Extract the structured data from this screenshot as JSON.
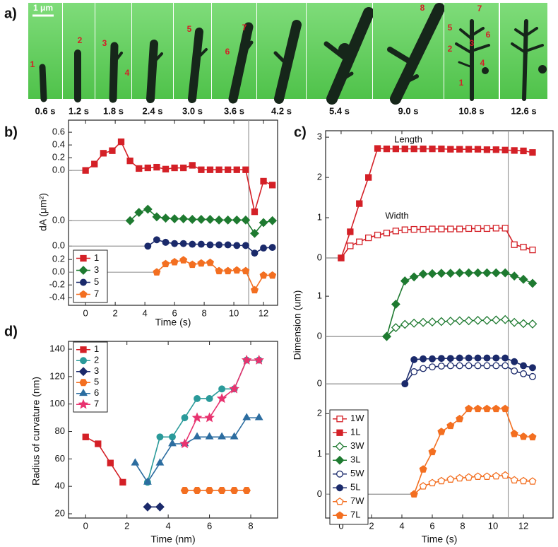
{
  "image_strip": {
    "label": "a)",
    "scale_bar": "1 μm",
    "frames": [
      {
        "time": "0.6 s",
        "markers": [
          "1"
        ]
      },
      {
        "time": "1.2 s",
        "markers": [
          "2"
        ]
      },
      {
        "time": "1.8 s",
        "markers": [
          "3",
          "4"
        ]
      },
      {
        "time": "2.4 s",
        "markers": []
      },
      {
        "time": "3.0 s",
        "markers": [
          "5"
        ]
      },
      {
        "time": "3.6 s",
        "markers": [
          "6",
          "7"
        ]
      },
      {
        "time": "4.2 s",
        "markers": []
      },
      {
        "time": "5.4 s",
        "markers": []
      },
      {
        "time": "9.0 s",
        "markers": [
          "8"
        ]
      },
      {
        "time": "10.8 s",
        "markers": [
          "7",
          "5",
          "6",
          "2",
          "3",
          "4",
          "1"
        ]
      },
      {
        "time": "12.6 s",
        "markers": []
      }
    ]
  },
  "chart_data": [
    {
      "type": "line",
      "label": "b)",
      "xlabel": "Time (s)",
      "ylabel": "dA (μm²)",
      "xlim": [
        -1.15,
        12.95
      ],
      "xticks": [
        0,
        2,
        4,
        6,
        8,
        10,
        12
      ],
      "vline": 11,
      "legend": "lower left",
      "series": [
        {
          "name": "1",
          "color": "#d42027",
          "marker": "square",
          "filled": true,
          "ylim": [
            -2.12,
            0.79
          ],
          "yticks": [
            {
              "value": 0,
              "label": "0.0"
            },
            0.2,
            0.4,
            0.6
          ],
          "x": [
            0,
            0.6,
            1.2,
            1.8,
            2.4,
            3.0,
            3.6,
            4.2,
            4.8,
            5.4,
            6.0,
            6.6,
            7.2,
            7.8,
            8.4,
            9.0,
            9.6,
            10.2,
            10.8,
            11.4,
            12.0,
            12.6
          ],
          "values": [
            0,
            0.1,
            0.27,
            0.31,
            0.45,
            0.15,
            0.03,
            0.04,
            0.05,
            0.02,
            0.04,
            0.04,
            0.08,
            0.01,
            0.01,
            0.01,
            0.01,
            0.01,
            0.01,
            -0.65,
            -0.17,
            -0.23
          ]
        },
        {
          "name": "3",
          "color": "#1e7a30",
          "marker": "diamond",
          "filled": true,
          "ylim": [
            -1.33,
            1.58
          ],
          "yticks": [
            {
              "value": 0,
              "label": "0.0"
            }
          ],
          "x": [
            3.0,
            3.6,
            4.2,
            4.8,
            5.4,
            6.0,
            6.6,
            7.2,
            7.8,
            8.4,
            9.0,
            9.6,
            10.2,
            10.8,
            11.4,
            12.0,
            12.6
          ],
          "values": [
            0,
            0.13,
            0.18,
            0.06,
            0.04,
            0.03,
            0.03,
            0.02,
            0.02,
            0.02,
            0.01,
            0.01,
            0.01,
            0.01,
            -0.2,
            -0.03,
            0
          ]
        },
        {
          "name": "5",
          "color": "#1b2a6b",
          "marker": "circle",
          "filled": true,
          "ylim": [
            -0.93,
            1.98
          ],
          "yticks": [
            {
              "value": 0,
              "label": "0.0"
            }
          ],
          "x": [
            4.2,
            4.8,
            5.4,
            6.0,
            6.6,
            7.2,
            7.8,
            8.4,
            9.0,
            9.6,
            10.2,
            10.8,
            11.4,
            12.0,
            12.6
          ],
          "values": [
            0,
            0.1,
            0.06,
            0.04,
            0.04,
            0.03,
            0.03,
            0.02,
            0.02,
            0.02,
            0.01,
            0.01,
            -0.11,
            -0.03,
            -0.02
          ]
        },
        {
          "name": "7",
          "color": "#f36f21",
          "marker": "pentagon",
          "filled": true,
          "ylim": [
            -0.52,
            2.39
          ],
          "yticks": [
            -0.4,
            -0.2,
            {
              "value": 0,
              "label": "0.0"
            },
            0.2
          ],
          "x": [
            4.8,
            5.4,
            6.0,
            6.6,
            7.2,
            7.8,
            8.4,
            9.0,
            9.6,
            10.2,
            10.8,
            11.4,
            12.0,
            12.6
          ],
          "values": [
            0,
            0.13,
            0.16,
            0.19,
            0.12,
            0.14,
            0.15,
            0.02,
            0.02,
            0.03,
            0.02,
            -0.28,
            -0.05,
            -0.05
          ]
        }
      ]
    },
    {
      "type": "line",
      "label": "c)",
      "xlabel": "Time (s)",
      "ylabel": "Dimension (um)",
      "annotations": [
        "Length",
        "Width"
      ],
      "xlim": [
        -1.02,
        13.95
      ],
      "xticks": [
        0,
        2,
        4,
        6,
        8,
        10,
        12
      ],
      "vline": 11,
      "legend": "lower left",
      "series": [
        {
          "name": "1W",
          "color": "#d42027",
          "marker": "square",
          "filled": false,
          "ylim": [
            -6.46,
            3.16
          ],
          "x": [
            0,
            0.6,
            1.2,
            1.8,
            2.4,
            3.0,
            3.6,
            4.2,
            4.8,
            5.4,
            6.0,
            6.6,
            7.2,
            7.8,
            8.4,
            9.0,
            9.6,
            10.2,
            10.8,
            11.4,
            12.0,
            12.6
          ],
          "values": [
            0,
            0.3,
            0.4,
            0.5,
            0.57,
            0.62,
            0.67,
            0.7,
            0.71,
            0.71,
            0.72,
            0.72,
            0.72,
            0.72,
            0.73,
            0.73,
            0.73,
            0.74,
            0.74,
            0.33,
            0.27,
            0.2
          ]
        },
        {
          "name": "1L",
          "color": "#d42027",
          "marker": "square",
          "filled": true,
          "ylim": [
            -6.46,
            3.16
          ],
          "yticks": [
            0,
            1,
            2,
            3
          ],
          "x": [
            0,
            0.6,
            1.2,
            1.8,
            2.4,
            3.0,
            3.6,
            4.2,
            4.8,
            5.4,
            6.0,
            6.6,
            7.2,
            7.8,
            8.4,
            9.0,
            9.6,
            10.2,
            10.8,
            11.4,
            12.0,
            12.6
          ],
          "values": [
            0,
            0.65,
            1.35,
            2.0,
            2.72,
            2.71,
            2.71,
            2.71,
            2.71,
            2.71,
            2.71,
            2.71,
            2.7,
            2.7,
            2.7,
            2.7,
            2.69,
            2.69,
            2.68,
            2.67,
            2.66,
            2.62
          ]
        },
        {
          "name": "3W",
          "color": "#1e7a30",
          "marker": "diamond",
          "filled": false,
          "ylim": [
            -4.51,
            5.11
          ],
          "x": [
            3.0,
            3.6,
            4.2,
            4.8,
            5.4,
            6.0,
            6.6,
            7.2,
            7.8,
            8.4,
            9.0,
            9.6,
            10.2,
            10.8,
            11.4,
            12.0,
            12.6
          ],
          "values": [
            0,
            0.22,
            0.3,
            0.33,
            0.35,
            0.36,
            0.37,
            0.38,
            0.39,
            0.39,
            0.4,
            0.4,
            0.41,
            0.42,
            0.35,
            0.32,
            0.31
          ]
        },
        {
          "name": "3L",
          "color": "#1e7a30",
          "marker": "diamond",
          "filled": true,
          "ylim": [
            -4.51,
            5.11
          ],
          "yticks": [
            0,
            1
          ],
          "x": [
            3.0,
            3.6,
            4.2,
            4.8,
            5.4,
            6.0,
            6.6,
            7.2,
            7.8,
            8.4,
            9.0,
            9.6,
            10.2,
            10.8,
            11.4,
            12.0,
            12.6
          ],
          "values": [
            0,
            0.8,
            1.38,
            1.48,
            1.55,
            1.56,
            1.57,
            1.57,
            1.58,
            1.58,
            1.58,
            1.58,
            1.58,
            1.58,
            1.5,
            1.42,
            1.32
          ]
        },
        {
          "name": "5W",
          "color": "#1b2a6b",
          "marker": "circle",
          "filled": false,
          "ylim": [
            -3.33,
            6.28
          ],
          "x": [
            4.2,
            4.8,
            5.4,
            6.0,
            6.6,
            7.2,
            7.8,
            8.4,
            9.0,
            9.6,
            10.2,
            10.8,
            11.4,
            12.0,
            12.6
          ],
          "values": [
            0,
            0.3,
            0.38,
            0.42,
            0.44,
            0.45,
            0.45,
            0.45,
            0.45,
            0.45,
            0.45,
            0.45,
            0.32,
            0.25,
            0.18
          ]
        },
        {
          "name": "5L",
          "color": "#1b2a6b",
          "marker": "circle",
          "filled": true,
          "ylim": [
            -3.33,
            6.28
          ],
          "yticks": [
            0
          ],
          "x": [
            4.2,
            4.8,
            5.4,
            6.0,
            6.6,
            7.2,
            7.8,
            8.4,
            9.0,
            9.6,
            10.2,
            10.8,
            11.4,
            12.0,
            12.6
          ],
          "values": [
            0,
            0.6,
            0.62,
            0.62,
            0.63,
            0.63,
            0.64,
            0.64,
            0.64,
            0.64,
            0.64,
            0.64,
            0.55,
            0.45,
            0.4
          ]
        },
        {
          "name": "7W",
          "color": "#f36f21",
          "marker": "pentagon",
          "filled": false,
          "ylim": [
            -0.59,
            9.02
          ],
          "x": [
            4.8,
            5.4,
            6.0,
            6.6,
            7.2,
            7.8,
            8.4,
            9.0,
            9.6,
            10.2,
            10.8,
            11.4,
            12.0,
            12.6
          ],
          "values": [
            0,
            0.2,
            0.28,
            0.33,
            0.37,
            0.4,
            0.42,
            0.44,
            0.44,
            0.45,
            0.47,
            0.35,
            0.33,
            0.32
          ]
        },
        {
          "name": "7L",
          "color": "#f36f21",
          "marker": "pentagon",
          "filled": true,
          "ylim": [
            -0.59,
            9.02
          ],
          "yticks": [
            0,
            1,
            2
          ],
          "x": [
            4.8,
            5.4,
            6.0,
            6.6,
            7.2,
            7.8,
            8.4,
            9.0,
            9.6,
            10.2,
            10.8,
            11.4,
            12.0,
            12.6
          ],
          "values": [
            0,
            0.62,
            1.05,
            1.55,
            1.7,
            1.87,
            2.12,
            2.12,
            2.12,
            2.12,
            2.12,
            1.5,
            1.43,
            1.42
          ]
        }
      ]
    },
    {
      "type": "line",
      "label": "d)",
      "xlabel": "Time (nm)",
      "ylabel": "Radius of curvature (nm)",
      "xlim": [
        -0.83,
        9.3
      ],
      "xticks": [
        0,
        2,
        4,
        6,
        8
      ],
      "ylim": [
        16.9,
        145.7
      ],
      "yticks": [
        20,
        40,
        60,
        80,
        100,
        120,
        140
      ],
      "legend": "upper left",
      "series": [
        {
          "name": "1",
          "color": "#d42027",
          "marker": "square",
          "filled": true,
          "x": [
            0,
            0.6,
            1.2,
            1.8
          ],
          "values": [
            76,
            71,
            57,
            43
          ]
        },
        {
          "name": "2",
          "color": "#2a9a9a",
          "marker": "circle",
          "filled": true,
          "x": [
            3.0,
            3.6,
            4.2,
            4.8,
            5.4,
            6.0,
            6.6,
            7.2,
            7.8,
            8.4
          ],
          "values": [
            43,
            76,
            76,
            90,
            104,
            104,
            111,
            111,
            132,
            132
          ]
        },
        {
          "name": "3",
          "color": "#1b2a6b",
          "marker": "diamond",
          "filled": true,
          "x": [
            3.0,
            3.6
          ],
          "values": [
            25,
            25
          ]
        },
        {
          "name": "5",
          "color": "#f36f21",
          "marker": "hexagon",
          "filled": true,
          "x": [
            4.8,
            5.4,
            6.0,
            6.6,
            7.2,
            7.8
          ],
          "values": [
            37,
            37,
            37,
            37,
            37,
            37
          ]
        },
        {
          "name": "6",
          "color": "#2c6da0",
          "marker": "triangle",
          "filled": true,
          "x": [
            2.4,
            3.0,
            3.6,
            4.2,
            4.8,
            5.4,
            6.0,
            6.6,
            7.2,
            7.8,
            8.4
          ],
          "values": [
            57,
            43,
            57,
            71,
            71,
            76,
            76,
            76,
            76,
            90,
            90
          ]
        },
        {
          "name": "7",
          "color": "#e8336f",
          "marker": "star",
          "filled": true,
          "x": [
            4.8,
            5.4,
            6.0,
            6.6,
            7.2,
            7.8,
            8.4
          ],
          "values": [
            71,
            90,
            90,
            104,
            111,
            132,
            132
          ]
        }
      ]
    }
  ]
}
